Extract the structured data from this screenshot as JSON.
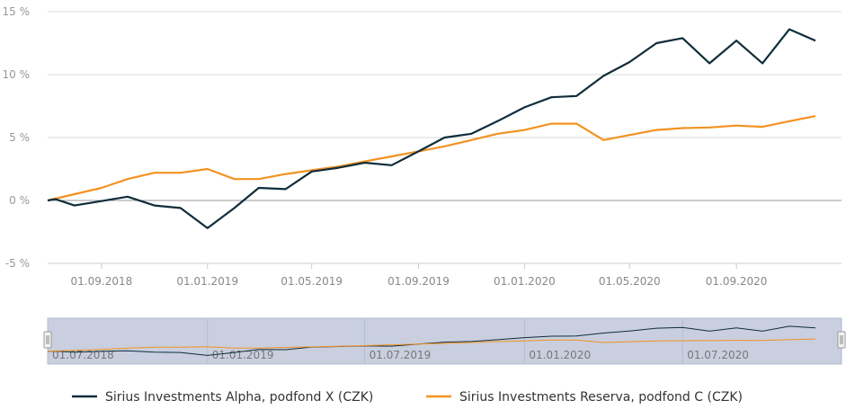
{
  "chart_data": {
    "type": "line",
    "y_ticks": [
      "15 %",
      "10 %",
      "5 %",
      "0 %",
      "-5 %"
    ],
    "y_tick_values": [
      15,
      10,
      5,
      0,
      -5
    ],
    "ylim": [
      -5,
      15
    ],
    "x_ticks": [
      "01.09.2018",
      "01.01.2019",
      "01.05.2019",
      "01.09.2019",
      "01.01.2020",
      "01.05.2020",
      "01.09.2020"
    ],
    "x_tick_dates": [
      "2018-09-01",
      "2019-01-01",
      "2019-05-01",
      "2019-09-01",
      "2020-01-01",
      "2020-05-01",
      "2020-09-01"
    ],
    "xlim": [
      "2018-07-01",
      "2020-12-31"
    ],
    "grid": "horizontal",
    "legend_position": "bottom",
    "series": [
      {
        "name": "Sirius Investments Alpha, podfond X (CZK)",
        "color": "#0f2d3a",
        "points": [
          [
            "2018-07-01",
            0.0
          ],
          [
            "2018-07-10",
            0.1
          ],
          [
            "2018-08-01",
            -0.4
          ],
          [
            "2018-09-01",
            -0.05
          ],
          [
            "2018-10-01",
            0.3
          ],
          [
            "2018-11-01",
            -0.4
          ],
          [
            "2018-12-01",
            -0.6
          ],
          [
            "2019-01-01",
            -2.2
          ],
          [
            "2019-02-01",
            -0.6
          ],
          [
            "2019-03-01",
            1.0
          ],
          [
            "2019-04-01",
            0.9
          ],
          [
            "2019-05-01",
            2.3
          ],
          [
            "2019-06-01",
            2.6
          ],
          [
            "2019-07-01",
            3.0
          ],
          [
            "2019-08-01",
            2.8
          ],
          [
            "2019-09-01",
            3.9
          ],
          [
            "2019-10-01",
            5.0
          ],
          [
            "2019-11-01",
            5.3
          ],
          [
            "2019-12-01",
            6.3
          ],
          [
            "2020-01-01",
            7.4
          ],
          [
            "2020-02-01",
            8.2
          ],
          [
            "2020-03-01",
            8.3
          ],
          [
            "2020-04-01",
            9.9
          ],
          [
            "2020-05-01",
            11.0
          ],
          [
            "2020-06-01",
            12.5
          ],
          [
            "2020-07-01",
            12.9
          ],
          [
            "2020-08-01",
            10.9
          ],
          [
            "2020-09-01",
            12.7
          ],
          [
            "2020-10-01",
            10.9
          ],
          [
            "2020-11-01",
            13.6
          ],
          [
            "2020-12-01",
            12.7
          ]
        ]
      },
      {
        "name": "Sirius Investments Reserva, podfond C (CZK)",
        "color": "#f39221",
        "points": [
          [
            "2018-07-01",
            0.0
          ],
          [
            "2018-08-01",
            0.5
          ],
          [
            "2018-09-01",
            1.0
          ],
          [
            "2018-10-01",
            1.7
          ],
          [
            "2018-11-01",
            2.2
          ],
          [
            "2018-12-01",
            2.2
          ],
          [
            "2019-01-01",
            2.5
          ],
          [
            "2019-02-01",
            1.7
          ],
          [
            "2019-03-01",
            1.7
          ],
          [
            "2019-04-01",
            2.1
          ],
          [
            "2019-05-01",
            2.4
          ],
          [
            "2019-06-01",
            2.7
          ],
          [
            "2019-07-01",
            3.1
          ],
          [
            "2019-08-01",
            3.5
          ],
          [
            "2019-09-01",
            3.9
          ],
          [
            "2019-10-01",
            4.3
          ],
          [
            "2019-11-01",
            4.8
          ],
          [
            "2019-12-01",
            5.3
          ],
          [
            "2020-01-01",
            5.6
          ],
          [
            "2020-02-01",
            6.1
          ],
          [
            "2020-03-01",
            6.1
          ],
          [
            "2020-04-01",
            4.8
          ],
          [
            "2020-05-01",
            5.2
          ],
          [
            "2020-06-01",
            5.6
          ],
          [
            "2020-07-01",
            5.75
          ],
          [
            "2020-08-01",
            5.8
          ],
          [
            "2020-09-01",
            5.95
          ],
          [
            "2020-10-01",
            5.85
          ],
          [
            "2020-11-01",
            6.3
          ],
          [
            "2020-12-01",
            6.7
          ]
        ]
      }
    ],
    "navigator": {
      "x_ticks": [
        "01.07.2018",
        "01.01.2019",
        "01.07.2019",
        "01.01.2020",
        "01.07.2020"
      ],
      "x_tick_dates": [
        "2018-07-01",
        "2019-01-01",
        "2019-07-01",
        "2020-01-01",
        "2020-07-01"
      ]
    }
  }
}
